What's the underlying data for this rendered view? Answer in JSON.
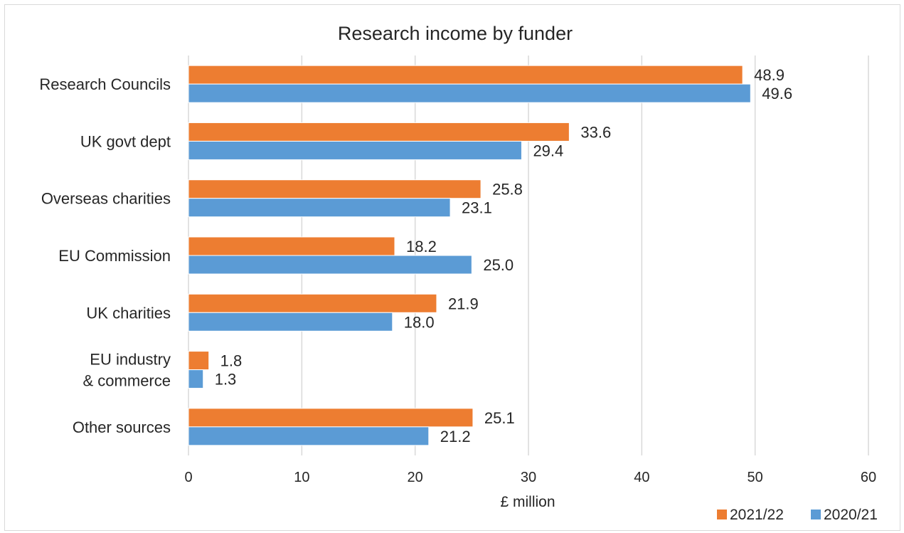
{
  "chart_data": {
    "type": "bar",
    "orientation": "horizontal",
    "title": "Research income by funder",
    "xlabel": "£ million",
    "ylabel": "",
    "xlim": [
      0,
      60
    ],
    "xticks": [
      0,
      10,
      20,
      30,
      40,
      50,
      60
    ],
    "grid": "vertical",
    "legend_position": "bottom-right",
    "categories": [
      [
        "Research Councils"
      ],
      [
        "UK govt dept"
      ],
      [
        "Overseas charities"
      ],
      [
        "EU Commission"
      ],
      [
        "UK charities"
      ],
      [
        "EU industry",
        "& commerce"
      ],
      [
        "Other sources"
      ]
    ],
    "series": [
      {
        "name": "2021/22",
        "color": "#ed7d31",
        "values": [
          48.9,
          33.6,
          25.8,
          18.2,
          21.9,
          1.8,
          25.1
        ]
      },
      {
        "name": "2020/21",
        "color": "#5b9bd5",
        "values": [
          49.6,
          29.4,
          23.1,
          25.0,
          18.0,
          1.3,
          21.2
        ]
      }
    ]
  }
}
